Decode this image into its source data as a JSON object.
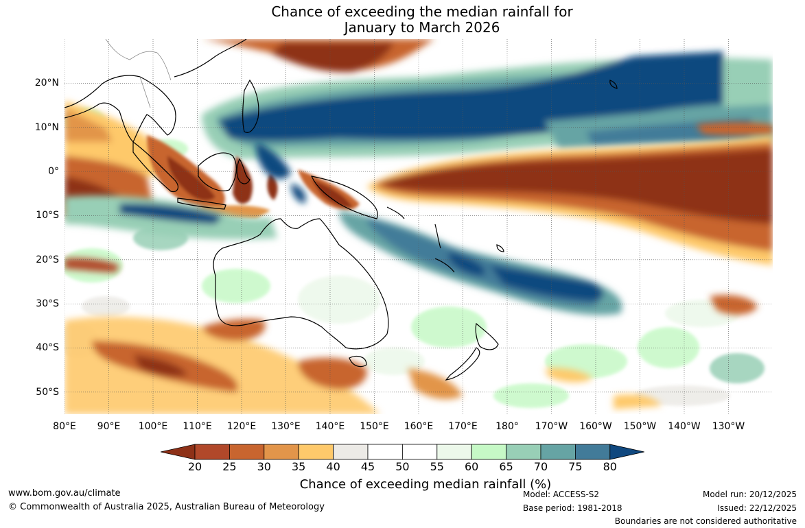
{
  "title": {
    "line1": "Chance of exceeding the median rainfall for",
    "line2": "January to March 2026"
  },
  "map": {
    "lat_labels": [
      {
        "label": "20°N",
        "lat": 20
      },
      {
        "label": "10°N",
        "lat": 10
      },
      {
        "label": "0°",
        "lat": 0
      },
      {
        "label": "10°S",
        "lat": -10
      },
      {
        "label": "20°S",
        "lat": -20
      },
      {
        "label": "30°S",
        "lat": -30
      },
      {
        "label": "40°S",
        "lat": -40
      },
      {
        "label": "50°S",
        "lat": -50
      }
    ],
    "lon_labels": [
      {
        "label": "80°E",
        "lon": 80
      },
      {
        "label": "90°E",
        "lon": 90
      },
      {
        "label": "100°E",
        "lon": 100
      },
      {
        "label": "110°E",
        "lon": 110
      },
      {
        "label": "120°E",
        "lon": 120
      },
      {
        "label": "130°E",
        "lon": 130
      },
      {
        "label": "140°E",
        "lon": 140
      },
      {
        "label": "150°E",
        "lon": 150
      },
      {
        "label": "160°E",
        "lon": 160
      },
      {
        "label": "170°E",
        "lon": 170
      },
      {
        "label": "180°",
        "lon": 180
      },
      {
        "label": "170°W",
        "lon": 190
      },
      {
        "label": "160°W",
        "lon": 200
      },
      {
        "label": "150°W",
        "lon": 210
      },
      {
        "label": "140°W",
        "lon": 220
      },
      {
        "label": "130°W",
        "lon": 230
      }
    ]
  },
  "colorbar": {
    "title": "Chance of exceeding median rainfall (%)",
    "ticks": [
      "20",
      "25",
      "30",
      "35",
      "40",
      "45",
      "50",
      "55",
      "60",
      "65",
      "70",
      "75",
      "80"
    ],
    "colors": [
      "#8e3118",
      "#b1482a",
      "#c8652f",
      "#e2954a",
      "#fec96b",
      "#eceae6",
      "#ffffff",
      "#ffffff",
      "#ecf8ea",
      "#c6f9c6",
      "#98cfb6",
      "#66a4a4",
      "#427b99",
      "#10487f"
    ]
  },
  "footer": {
    "website": "www.bom.gov.au/climate",
    "copyright": "© Commonwealth of Australia 2025, Australian Bureau of Meteorology",
    "model": "Model: ACCESS-S2",
    "base_period": "Base period: 1981-2018",
    "model_run": "Model run: 20/12/2025",
    "issued": "Issued: 22/12/2025",
    "disclaimer": "Boundaries are not considered authoritative"
  }
}
